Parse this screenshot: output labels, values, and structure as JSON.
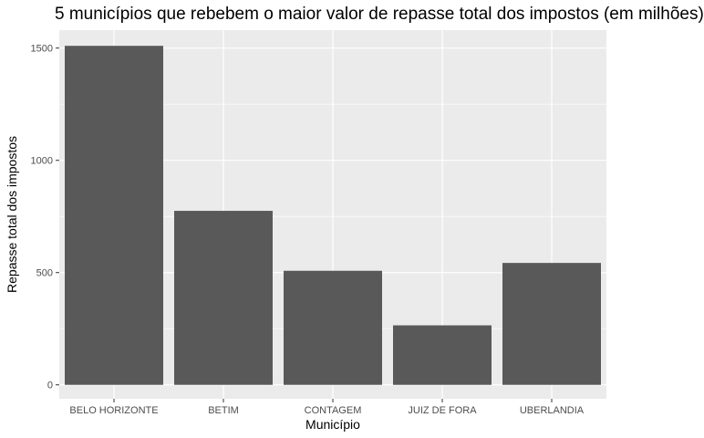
{
  "chart_data": {
    "type": "bar",
    "title": "5 municípios que rebebem o maior valor de repasse total dos impostos (em milhões)",
    "xlabel": "Município",
    "ylabel": "Repasse total dos impostos",
    "categories": [
      "BELO HORIZONTE",
      "BETIM",
      "CONTAGEM",
      "JUIZ DE FORA",
      "UBERLANDIA"
    ],
    "values": [
      1510,
      775,
      508,
      265,
      543
    ],
    "yticks": [
      0,
      500,
      1000,
      1500
    ],
    "ytick_labels": [
      "0",
      "500",
      "1000",
      "1500"
    ],
    "ylim": [
      -62,
      1580
    ],
    "grid": true,
    "legend": "none",
    "colors": {
      "panel": "#ebebeb",
      "grid_major": "#ffffff",
      "bar": "#595959",
      "tick_text": "#4d4d4d",
      "tick_mark": "#333333"
    }
  }
}
